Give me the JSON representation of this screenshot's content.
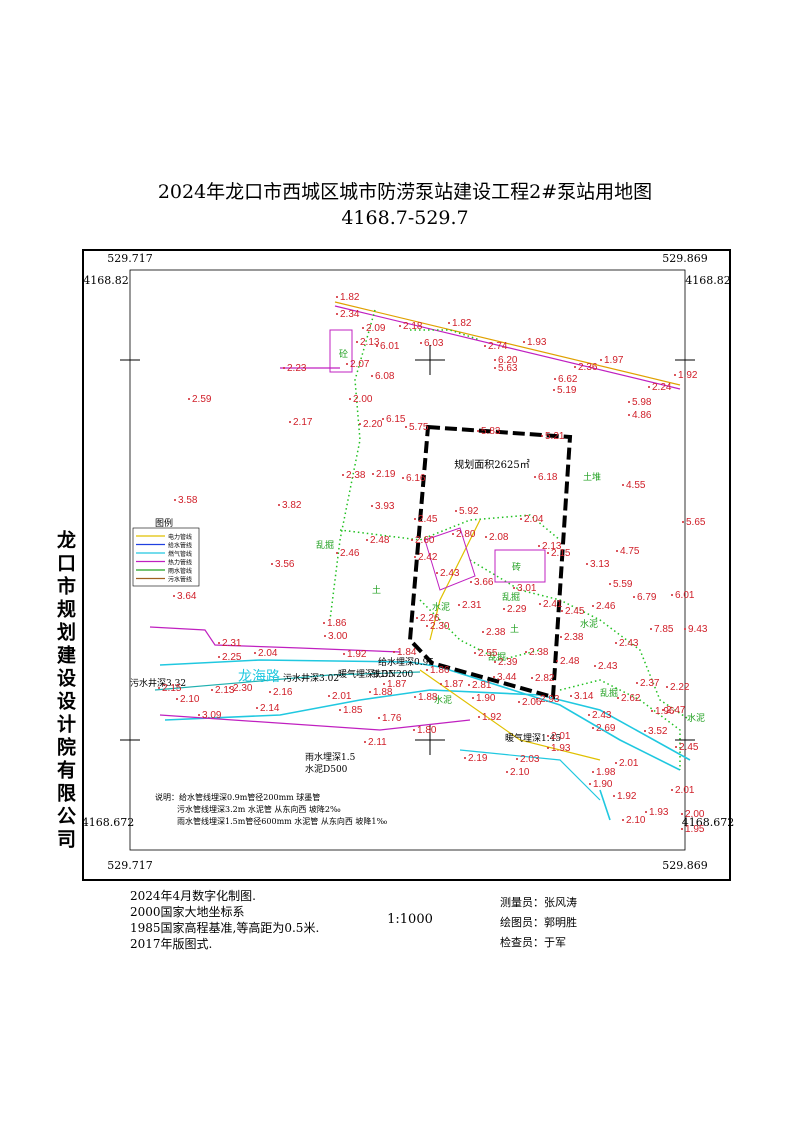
{
  "header": {
    "title": "2024年龙口市西城区城市防涝泵站建设工程2#泵站用地图",
    "subtitle": "4168.7-529.7"
  },
  "side_label": "龙口市规划建设设计院有限公司",
  "frame": {
    "coords": [
      "529.717",
      "529.869",
      "4168.82",
      "4168.82",
      "4168.672",
      "4168.672",
      "529.717",
      "529.869"
    ]
  },
  "map": {
    "area_label": "规划面积2625㎡",
    "labels": [
      "土堆",
      "乱掘",
      "乱掘",
      "乱掘",
      "乱掘",
      "水泥",
      "水泥",
      "水泥",
      "水泥",
      "土",
      "土",
      "砖",
      "砼",
      "龙海路",
      "污水井深3.32",
      "污水井深3.02",
      "暖气埋深1.35",
      "铁DN200",
      "给水埋深0.95",
      "雨水埋深1.5",
      "水泥D500",
      "暖气埋深1.45"
    ],
    "spot_heights": [
      "1.82",
      "2.34",
      "2.09",
      "2.18",
      "1.82",
      "2.13",
      "6.01",
      "6.03",
      "2.74",
      "1.93",
      "2.07",
      "2.23",
      "6.20",
      "5.63",
      "2.36",
      "1.97",
      "6.08",
      "6.62",
      "2.24",
      "1.92",
      "5.19",
      "2.59",
      "2.00",
      "5.98",
      "4.86",
      "2.17",
      "2.20",
      "6.15",
      "5.75",
      "5.83",
      "5.21",
      "2.38",
      "2.19",
      "6.16",
      "6.18",
      "4.55",
      "3.58",
      "3.82",
      "3.93",
      "5.92",
      "2.04",
      "5.65",
      "2.45",
      "2.80",
      "2.08",
      "2.48",
      "2.60",
      "2.42",
      "2.13",
      "2.15",
      "4.75",
      "2.46",
      "3.56",
      "2.43",
      "3.13",
      "3.66",
      "3.01",
      "5.59",
      "6.79",
      "6.01",
      "3.64",
      "2.31",
      "2.29",
      "2.41",
      "2.45",
      "2.46",
      "1.86",
      "2.26",
      "2.30",
      "2.38",
      "2.38",
      "7.85",
      "9.43",
      "3.00",
      "2.31",
      "2.43",
      "2.38",
      "2.48",
      "2.25",
      "2.04",
      "1.92",
      "1.84",
      "2.55",
      "2.39",
      "2.43",
      "1.86",
      "2.15",
      "2.10",
      "2.13",
      "2.30",
      "2.16",
      "2.01",
      "1.88",
      "1.87",
      "1.88",
      "1.87",
      "2.81",
      "3.44",
      "2.82",
      "1.90",
      "2.06",
      "2.93",
      "3.14",
      "2.62",
      "2.37",
      "2.22",
      "1.96",
      "2.47",
      "2.14",
      "1.85",
      "1.92",
      "2.43",
      "2.69",
      "3.52",
      "1.76",
      "3.09",
      "2.01",
      "1.93",
      "2.45",
      "1.80",
      "2.11",
      "2.19",
      "2.03",
      "2.10",
      "1.98",
      "2.01",
      "1.90",
      "1.92",
      "2.01",
      "1.93",
      "2.00",
      "2.10",
      "1.95"
    ],
    "legend": {
      "title": "图例",
      "items": [
        "电力管线",
        "给水管线",
        "燃气管线",
        "热力管线",
        "雨水管线",
        "污水管线"
      ]
    },
    "notes": [
      "说明：给水管线埋深0.9m管径200mm 球墨管",
      "污水管线埋深3.2m 水泥管 从东向西 坡降2‰",
      "雨水管线埋深1.5m管径600mm 水泥管 从东向西 坡降1‰"
    ]
  },
  "footer": {
    "left": [
      "2024年4月数字化制图.",
      "2000国家大地坐标系",
      "1985国家高程基准,等高距为0.5米.",
      "2017年版图式."
    ],
    "scale": "1:1000",
    "right": [
      "测量员：张风涛",
      "绘图员：郭明胜",
      "检查员：于军"
    ]
  }
}
